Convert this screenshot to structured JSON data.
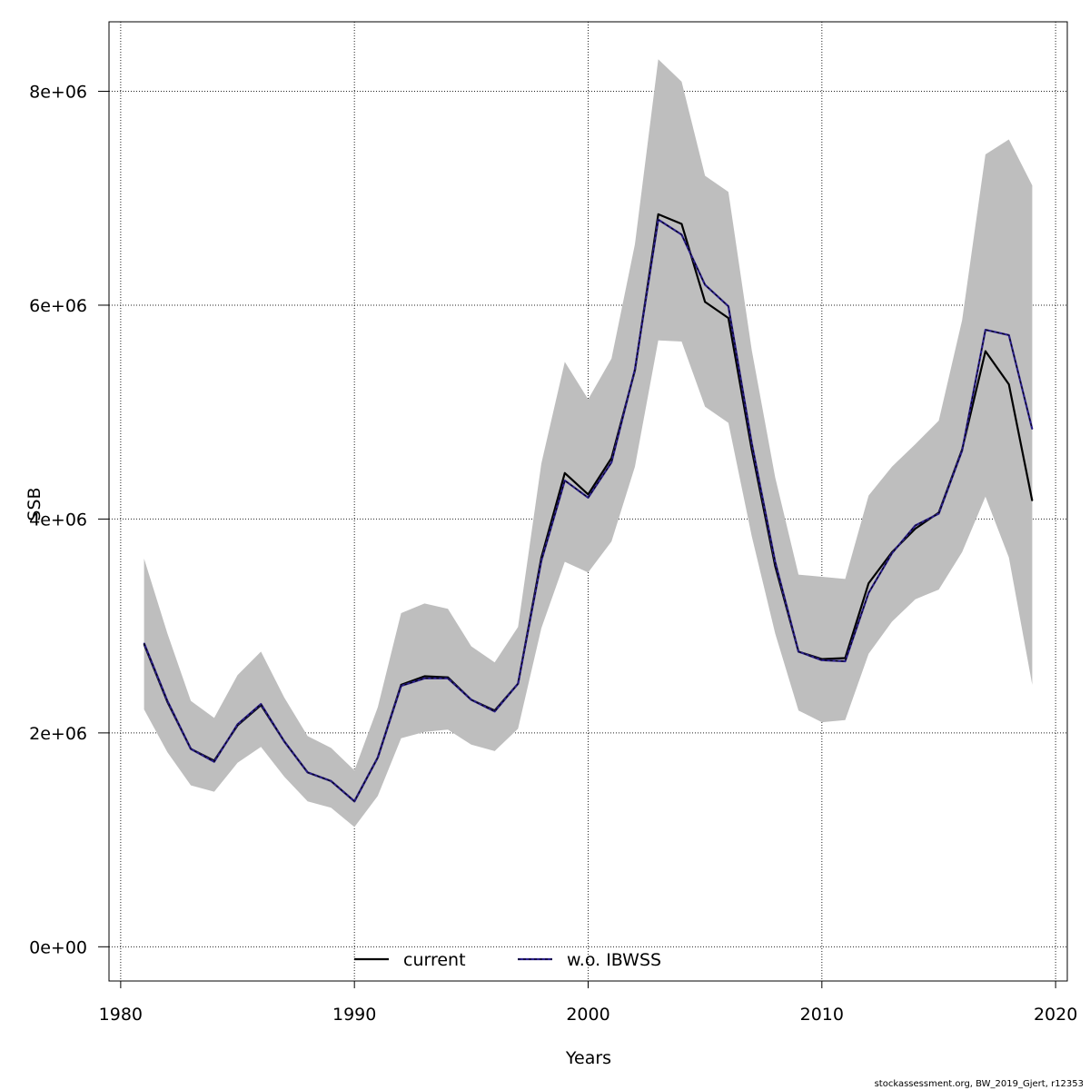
{
  "chart_data": {
    "type": "line",
    "xlabel": "Years",
    "ylabel": "SSB",
    "xlim": [
      1979.5,
      2020.5
    ],
    "ylim": [
      -320000,
      8650000
    ],
    "x_ticks": [
      1980,
      1990,
      2000,
      2010,
      2020
    ],
    "x_tick_labels": [
      "1980",
      "1990",
      "2000",
      "2010",
      "2020"
    ],
    "y_ticks": [
      0,
      2000000,
      4000000,
      6000000,
      8000000
    ],
    "y_tick_labels": [
      "0e+00",
      "2e+06",
      "4e+06",
      "6e+06",
      "8e+06"
    ],
    "grid": true,
    "legend_position": "bottom",
    "colors": {
      "band": "#bebebe",
      "current": "#000000",
      "wo": "#2b1f8c"
    },
    "x": [
      1981,
      1982,
      1983,
      1984,
      1985,
      1986,
      1987,
      1988,
      1989,
      1990,
      1991,
      1992,
      1993,
      1994,
      1995,
      1996,
      1997,
      1998,
      1999,
      2000,
      2001,
      2002,
      2003,
      2004,
      2005,
      2006,
      2007,
      2008,
      2009,
      2010,
      2011,
      2012,
      2013,
      2014,
      2015,
      2016,
      2017,
      2018,
      2019
    ],
    "band": {
      "upper": [
        3630000,
        2930000,
        2300000,
        2140000,
        2540000,
        2760000,
        2330000,
        1970000,
        1860000,
        1650000,
        2240000,
        3120000,
        3210000,
        3160000,
        2810000,
        2660000,
        2990000,
        4520000,
        5470000,
        5120000,
        5500000,
        6570000,
        8300000,
        8090000,
        7210000,
        7060000,
        5580000,
        4390000,
        3480000,
        3460000,
        3440000,
        4220000,
        4490000,
        4700000,
        4920000,
        5860000,
        7410000,
        7550000,
        7120000
      ],
      "lower": [
        2220000,
        1820000,
        1510000,
        1450000,
        1720000,
        1870000,
        1590000,
        1360000,
        1300000,
        1120000,
        1410000,
        1950000,
        2010000,
        2030000,
        1890000,
        1830000,
        2040000,
        2980000,
        3600000,
        3500000,
        3790000,
        4490000,
        5670000,
        5660000,
        5050000,
        4900000,
        3840000,
        2930000,
        2210000,
        2100000,
        2120000,
        2740000,
        3040000,
        3250000,
        3340000,
        3690000,
        4210000,
        3640000,
        2450000
      ]
    },
    "series": [
      {
        "name": "current",
        "values": [
          2830000,
          2290000,
          1850000,
          1740000,
          2070000,
          2260000,
          1920000,
          1630000,
          1550000,
          1360000,
          1770000,
          2450000,
          2530000,
          2520000,
          2310000,
          2210000,
          2460000,
          3640000,
          4430000,
          4230000,
          4570000,
          5390000,
          6850000,
          6760000,
          6030000,
          5880000,
          4650000,
          3560000,
          2760000,
          2690000,
          2700000,
          3400000,
          3690000,
          3910000,
          4060000,
          4650000,
          5570000,
          5260000,
          4170000
        ]
      },
      {
        "name": "w.o. IBWSS",
        "values": [
          2840000,
          2300000,
          1850000,
          1730000,
          2080000,
          2270000,
          1920000,
          1630000,
          1550000,
          1360000,
          1770000,
          2440000,
          2510000,
          2510000,
          2310000,
          2200000,
          2460000,
          3610000,
          4360000,
          4200000,
          4530000,
          5400000,
          6800000,
          6660000,
          6190000,
          5990000,
          4710000,
          3600000,
          2760000,
          2680000,
          2670000,
          3310000,
          3680000,
          3940000,
          4050000,
          4640000,
          5770000,
          5720000,
          4840000
        ]
      }
    ],
    "credit": "stockassessment.org, BW_2019_Gjert, r12353"
  }
}
